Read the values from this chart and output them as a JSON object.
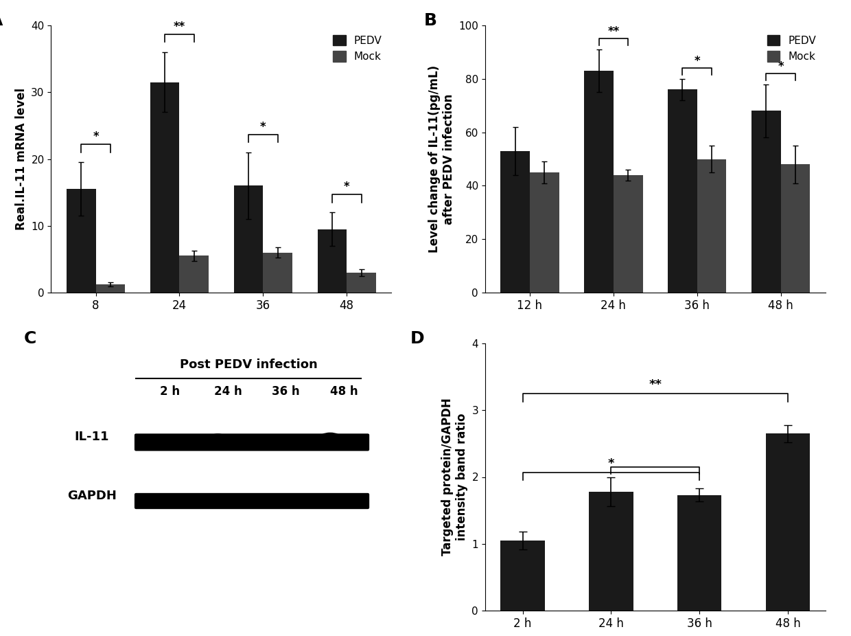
{
  "panel_A": {
    "label": "A",
    "categories": [
      "8",
      "24",
      "36",
      "48"
    ],
    "pedv_values": [
      15.5,
      31.5,
      16.0,
      9.5
    ],
    "pedv_errors": [
      4.0,
      4.5,
      5.0,
      2.5
    ],
    "mock_values": [
      1.2,
      5.5,
      6.0,
      3.0
    ],
    "mock_errors": [
      0.3,
      0.8,
      0.8,
      0.5
    ],
    "ylabel": "Real.IL-11 mRNA level",
    "ylim": [
      0,
      40
    ],
    "yticks": [
      0,
      10,
      20,
      30,
      40
    ],
    "significance": [
      "*",
      "**",
      "*",
      "*"
    ],
    "bar_color": "#1a1a1a",
    "bar_width": 0.35
  },
  "panel_B": {
    "label": "B",
    "categories": [
      "12 h",
      "24 h",
      "36 h",
      "48 h"
    ],
    "pedv_values": [
      53.0,
      83.0,
      76.0,
      68.0
    ],
    "pedv_errors": [
      9.0,
      8.0,
      4.0,
      10.0
    ],
    "mock_values": [
      45.0,
      44.0,
      50.0,
      48.0
    ],
    "mock_errors": [
      4.0,
      2.0,
      5.0,
      7.0
    ],
    "ylabel": "Level change of IL-11(pg/mL)\nafter PEDV infection",
    "ylim": [
      0,
      100
    ],
    "yticks": [
      0,
      20,
      40,
      60,
      80,
      100
    ],
    "significance": [
      "",
      "**",
      "*",
      "*"
    ],
    "bar_color": "#1a1a1a",
    "bar_width": 0.35
  },
  "panel_D": {
    "label": "D",
    "categories": [
      "2 h",
      "24 h",
      "36 h",
      "48 h"
    ],
    "values": [
      1.05,
      1.78,
      1.73,
      2.65
    ],
    "errors": [
      0.13,
      0.22,
      0.1,
      0.13
    ],
    "ylabel": "Targeted protein/GAPDH\nintensity band ratio",
    "ylim": [
      0,
      4
    ],
    "yticks": [
      0,
      1,
      2,
      3,
      4
    ],
    "bar_color": "#1a1a1a",
    "bar_width": 0.5
  },
  "panel_C": {
    "label": "C",
    "title": "Post PEDV infection",
    "timepoints": [
      "2 h",
      "24 h",
      "36 h",
      "48 h"
    ],
    "labels": [
      "IL-11",
      "GAPDH"
    ]
  }
}
